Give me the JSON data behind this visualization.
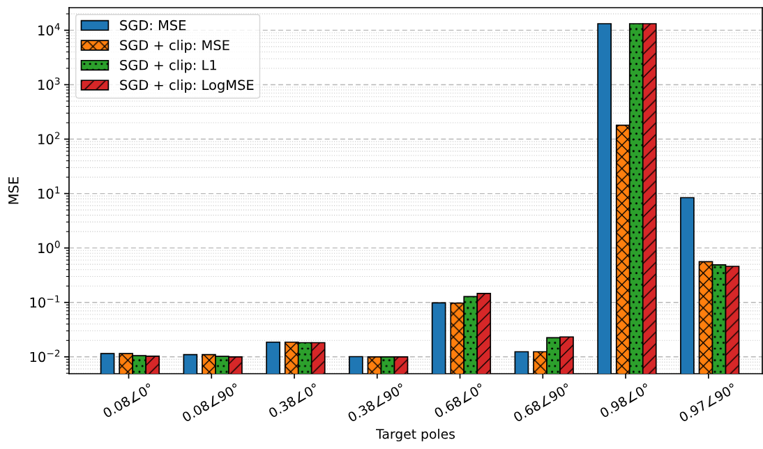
{
  "chart_data": {
    "type": "bar",
    "xlabel": "Target poles",
    "ylabel": "MSE",
    "categories": [
      "0.08∠0°",
      "0.08∠90°",
      "0.38∠0°",
      "0.38∠90°",
      "0.68∠0°",
      "0.68∠90°",
      "0.98∠0°",
      "0.97∠90°"
    ],
    "series": [
      {
        "name": "SGD: MSE",
        "color": "#1f77b4",
        "values": [
          0.0115,
          0.011,
          0.0186,
          0.0101,
          0.098,
          0.0124,
          13200,
          8.4
        ]
      },
      {
        "name": "SGD + clip: MSE",
        "color": "#ff7f0e",
        "values": [
          0.0115,
          0.011,
          0.0186,
          0.01,
          0.097,
          0.0124,
          180,
          0.56
        ]
      },
      {
        "name": "SGD + clip: L1",
        "color": "#2ca02c",
        "values": [
          0.0105,
          0.0102,
          0.0182,
          0.01,
          0.128,
          0.0225,
          13200,
          0.49
        ]
      },
      {
        "name": "SGD + clip: LogMSE",
        "color": "#d62728",
        "values": [
          0.0103,
          0.01,
          0.0182,
          0.01,
          0.146,
          0.0232,
          13200,
          0.46
        ]
      }
    ],
    "log": "y",
    "ylim": [
      0.0049,
      26000
    ],
    "yticks": [
      {
        "value": 0.01,
        "label": "10$^{−2}$"
      },
      {
        "value": 0.1,
        "label": "10$^{−1}$"
      },
      {
        "value": 1,
        "label": "10$^{0}$"
      },
      {
        "value": 10,
        "label": "10$^{1}$"
      },
      {
        "value": 100,
        "label": "10$^{2}$"
      },
      {
        "value": 1000,
        "label": "10$^{3}$"
      },
      {
        "value": 10000,
        "label": "10$^{4}$"
      }
    ],
    "grid": "y",
    "legend": "top left"
  }
}
